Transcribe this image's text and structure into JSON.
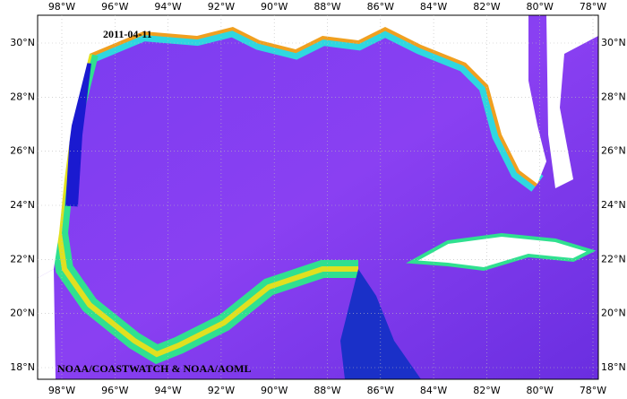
{
  "date": "2011-04-11",
  "credit": "NOAA/COASTWATCH & NOAA/AOML",
  "longitude_labels": [
    "98°W",
    "96°W",
    "94°W",
    "92°W",
    "90°W",
    "88°W",
    "86°W",
    "84°W",
    "82°W",
    "80°W",
    "78°W"
  ],
  "latitude_labels": [
    "30°N",
    "28°N",
    "26°N",
    "24°N",
    "22°N",
    "20°N",
    "18°N"
  ]
}
